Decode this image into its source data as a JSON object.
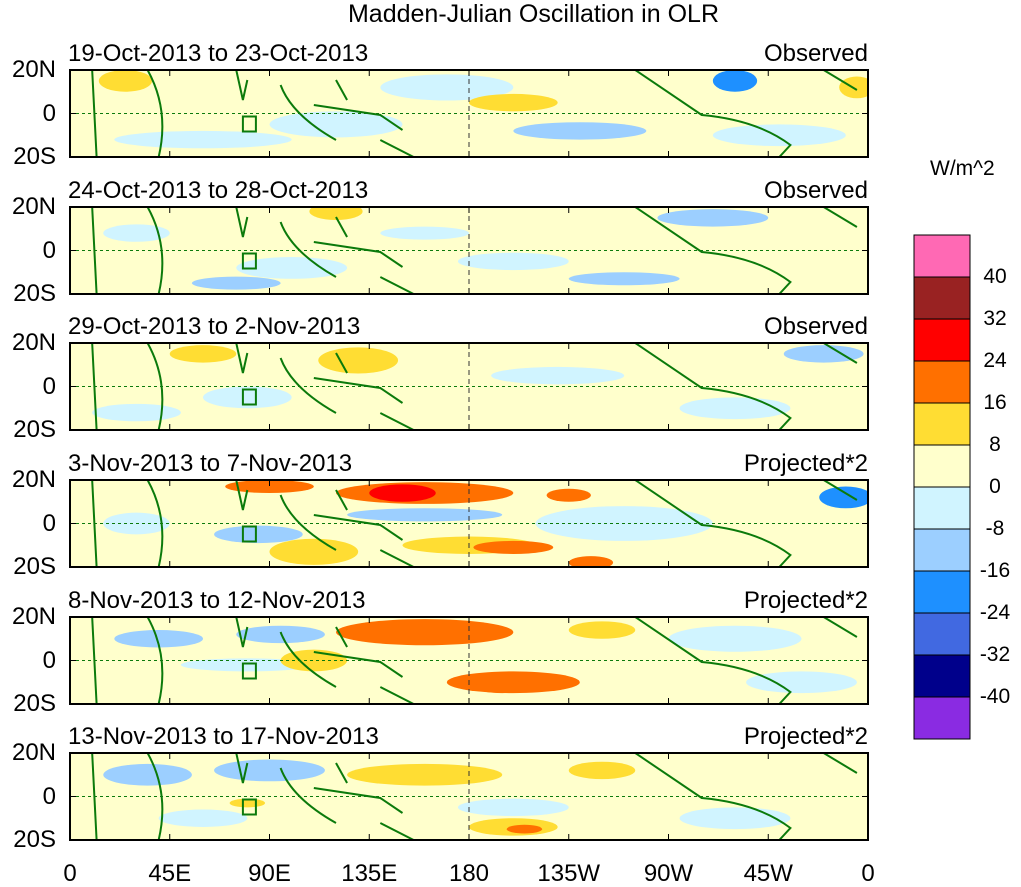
{
  "chart_data": {
    "type": "heatmap",
    "title": "Madden-Julian Oscillation in OLR",
    "colorbar": {
      "unit": "W/m^2",
      "levels": [
        "40",
        "32",
        "24",
        "16",
        "8",
        "0",
        "-8",
        "-16",
        "-24",
        "-32",
        "-40"
      ],
      "colors": [
        "#ff69b4",
        "#992222",
        "#ff0000",
        "#ff7000",
        "#ffdd33",
        "#ffffcc",
        "#d0f4ff",
        "#9ccfff",
        "#1e90ff",
        "#4169e1",
        "#00008b",
        "#8a2be2"
      ]
    },
    "x_ticks": [
      "0",
      "45E",
      "90E",
      "135E",
      "180",
      "135W",
      "90W",
      "45W",
      "0"
    ],
    "y_ticks": [
      "20N",
      "0",
      "20S"
    ],
    "xlim_lon": [
      0,
      360
    ],
    "ylim_lat": [
      -20,
      20
    ],
    "panels": [
      {
        "dates": "19-Oct-2013 to 23-Oct-2013",
        "type": "Observed"
      },
      {
        "dates": "24-Oct-2013 to 28-Oct-2013",
        "type": "Observed"
      },
      {
        "dates": "29-Oct-2013 to 2-Nov-2013",
        "type": "Observed"
      },
      {
        "dates": "3-Nov-2013 to 7-Nov-2013",
        "type": "Projected*2"
      },
      {
        "dates": "8-Nov-2013 to 12-Nov-2013",
        "type": "Projected*2"
      },
      {
        "dates": "13-Nov-2013 to 17-Nov-2013",
        "type": "Projected*2"
      }
    ]
  }
}
